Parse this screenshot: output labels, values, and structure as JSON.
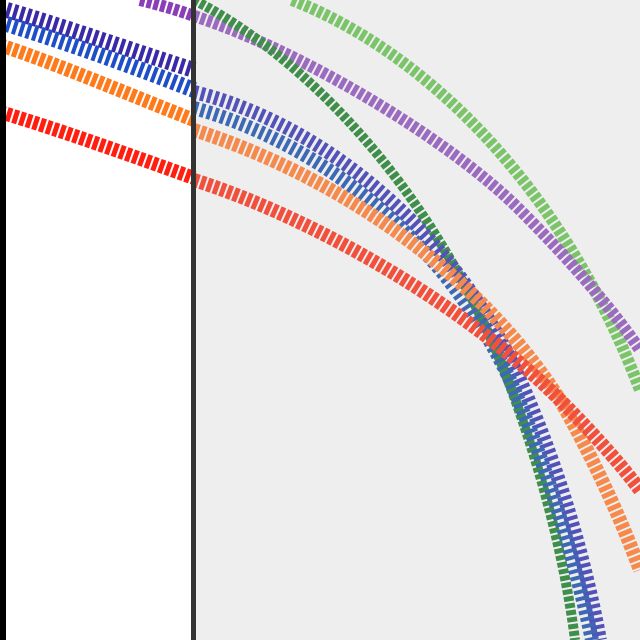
{
  "colors": {
    "left_background": "#ffffff",
    "right_background": "#eeeeef",
    "left_edge": "#000000",
    "divider": "#333333"
  },
  "curves": [
    {
      "name": "light-green-curve",
      "color": "#7cc46a"
    },
    {
      "name": "purple-curve",
      "color": "#9b6bbf"
    },
    {
      "name": "dark-green-curve",
      "color": "#3f8f4a"
    },
    {
      "name": "indigo-curve",
      "color": "#5252b8"
    },
    {
      "name": "blue-curve",
      "color": "#3c68b4"
    },
    {
      "name": "orange-curve",
      "color": "#f58a4c"
    },
    {
      "name": "red-curve",
      "color": "#f0503c"
    }
  ]
}
